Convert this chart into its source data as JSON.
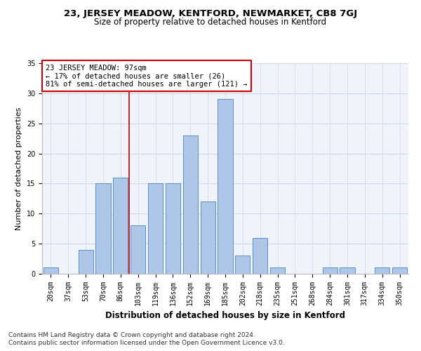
{
  "title": "23, JERSEY MEADOW, KENTFORD, NEWMARKET, CB8 7GJ",
  "subtitle": "Size of property relative to detached houses in Kentford",
  "xlabel": "Distribution of detached houses by size in Kentford",
  "ylabel": "Number of detached properties",
  "categories": [
    "20sqm",
    "37sqm",
    "53sqm",
    "70sqm",
    "86sqm",
    "103sqm",
    "119sqm",
    "136sqm",
    "152sqm",
    "169sqm",
    "185sqm",
    "202sqm",
    "218sqm",
    "235sqm",
    "251sqm",
    "268sqm",
    "284sqm",
    "301sqm",
    "317sqm",
    "334sqm",
    "350sqm"
  ],
  "values": [
    1,
    0,
    4,
    15,
    16,
    8,
    15,
    15,
    23,
    12,
    29,
    3,
    6,
    1,
    0,
    0,
    1,
    1,
    0,
    1,
    1
  ],
  "bar_color": "#aec6e8",
  "bar_edge_color": "#5a8fc2",
  "grid_color": "#d0d8e8",
  "annotation_box_color": "#ffffff",
  "annotation_border_color": "#cc0000",
  "annotation_text": "23 JERSEY MEADOW: 97sqm\n← 17% of detached houses are smaller (26)\n81% of semi-detached houses are larger (121) →",
  "red_line_x": 4.5,
  "ylim": [
    0,
    35
  ],
  "yticks": [
    0,
    5,
    10,
    15,
    20,
    25,
    30,
    35
  ],
  "footer_line1": "Contains HM Land Registry data © Crown copyright and database right 2024.",
  "footer_line2": "Contains public sector information licensed under the Open Government Licence v3.0.",
  "title_fontsize": 9.5,
  "subtitle_fontsize": 8.5,
  "axis_label_fontsize": 8,
  "tick_fontsize": 7,
  "annotation_fontsize": 7.5,
  "footer_fontsize": 6.5,
  "bg_color": "#f0f4fa"
}
